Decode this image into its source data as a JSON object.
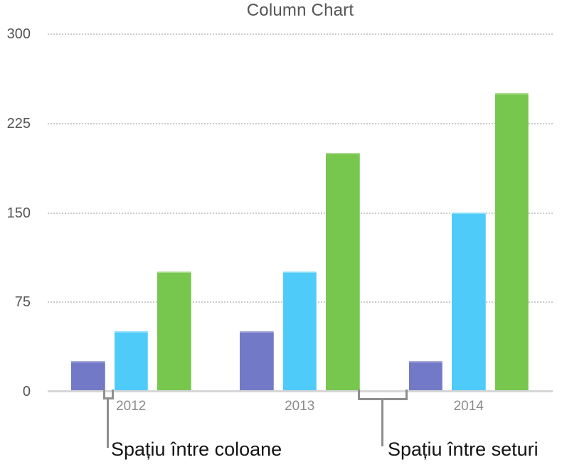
{
  "chart_data": {
    "type": "bar",
    "title": "Column Chart",
    "categories": [
      "2012",
      "2013",
      "2014"
    ],
    "series": [
      {
        "name": "purple-series",
        "color": "#7279c7",
        "values": [
          25,
          50,
          25
        ]
      },
      {
        "name": "blue-series",
        "color": "#4fcbf9",
        "values": [
          50,
          100,
          150
        ]
      },
      {
        "name": "green-series",
        "color": "#77c74f",
        "values": [
          100,
          200,
          250
        ]
      }
    ],
    "ylim": [
      0,
      300
    ],
    "yticks": [
      0,
      75,
      150,
      225,
      300
    ],
    "xlabel": "",
    "ylabel": "",
    "grid": "horizontal-dotted",
    "legend_position": "none"
  },
  "annotations": {
    "column_gap_label": "Spațiu între coloane",
    "set_gap_label": "Spațiu între seturi"
  },
  "colors": {
    "grid": "#cbcbcb",
    "axis_line": "#d6d6d6",
    "bracket": "#8e8e8e",
    "title_text": "#555557",
    "ytick_text": "#545456",
    "xtick_text": "#8b8b8b",
    "annotation_text": "#141414"
  }
}
